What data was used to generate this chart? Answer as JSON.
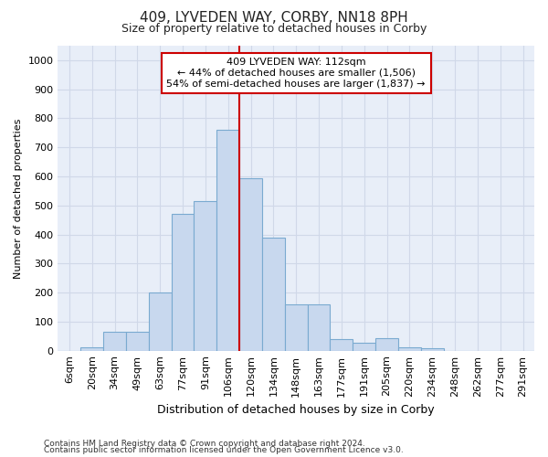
{
  "title": "409, LYVEDEN WAY, CORBY, NN18 8PH",
  "subtitle": "Size of property relative to detached houses in Corby",
  "xlabel": "Distribution of detached houses by size in Corby",
  "ylabel": "Number of detached properties",
  "footnote1": "Contains HM Land Registry data © Crown copyright and database right 2024.",
  "footnote2": "Contains public sector information licensed under the Open Government Licence v3.0.",
  "bar_labels": [
    "6sqm",
    "20sqm",
    "34sqm",
    "49sqm",
    "63sqm",
    "77sqm",
    "91sqm",
    "106sqm",
    "120sqm",
    "134sqm",
    "148sqm",
    "163sqm",
    "177sqm",
    "191sqm",
    "205sqm",
    "220sqm",
    "234sqm",
    "248sqm",
    "262sqm",
    "277sqm",
    "291sqm"
  ],
  "bar_values": [
    0,
    13,
    65,
    65,
    200,
    470,
    515,
    760,
    595,
    390,
    160,
    160,
    40,
    27,
    43,
    13,
    7,
    0,
    0,
    0,
    0
  ],
  "bar_color": "#c8d8ee",
  "bar_edgecolor": "#7aaad0",
  "vline_x_idx": 7.5,
  "vline_color": "#cc0000",
  "ylim": [
    0,
    1050
  ],
  "yticks": [
    0,
    100,
    200,
    300,
    400,
    500,
    600,
    700,
    800,
    900,
    1000
  ],
  "annotation_text": "409 LYVEDEN WAY: 112sqm\n← 44% of detached houses are smaller (1,506)\n54% of semi-detached houses are larger (1,837) →",
  "annotation_box_color": "#ffffff",
  "annotation_border_color": "#cc0000",
  "fig_bg_color": "#ffffff",
  "plot_bg_color": "#e8eef8",
  "grid_color": "#d0d8e8",
  "title_fontsize": 11,
  "subtitle_fontsize": 9,
  "ylabel_fontsize": 8,
  "xlabel_fontsize": 9,
  "tick_fontsize": 8,
  "annot_fontsize": 8,
  "footnote_fontsize": 6.5
}
